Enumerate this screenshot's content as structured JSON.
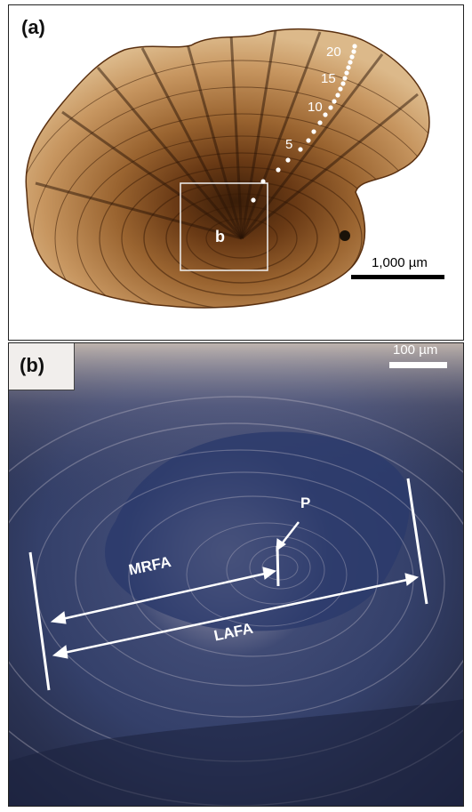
{
  "panel_a": {
    "label": "(a)",
    "inset_label": "b",
    "scale_bar_label": "1,000 µm",
    "ring_counts": [
      "20",
      "15",
      "10",
      "5"
    ]
  },
  "panel_b": {
    "label": "(b)",
    "scale_bar_label": "100 µm",
    "primordium_label": "P",
    "mrfa_label": "MRFA",
    "lafa_label": "LAFA"
  },
  "colors": {
    "otolith_brown": "#a26a34",
    "otolith_light": "#d8ae78",
    "panel_b_background": "#2c3550",
    "annotation_white": "#ffffff"
  }
}
